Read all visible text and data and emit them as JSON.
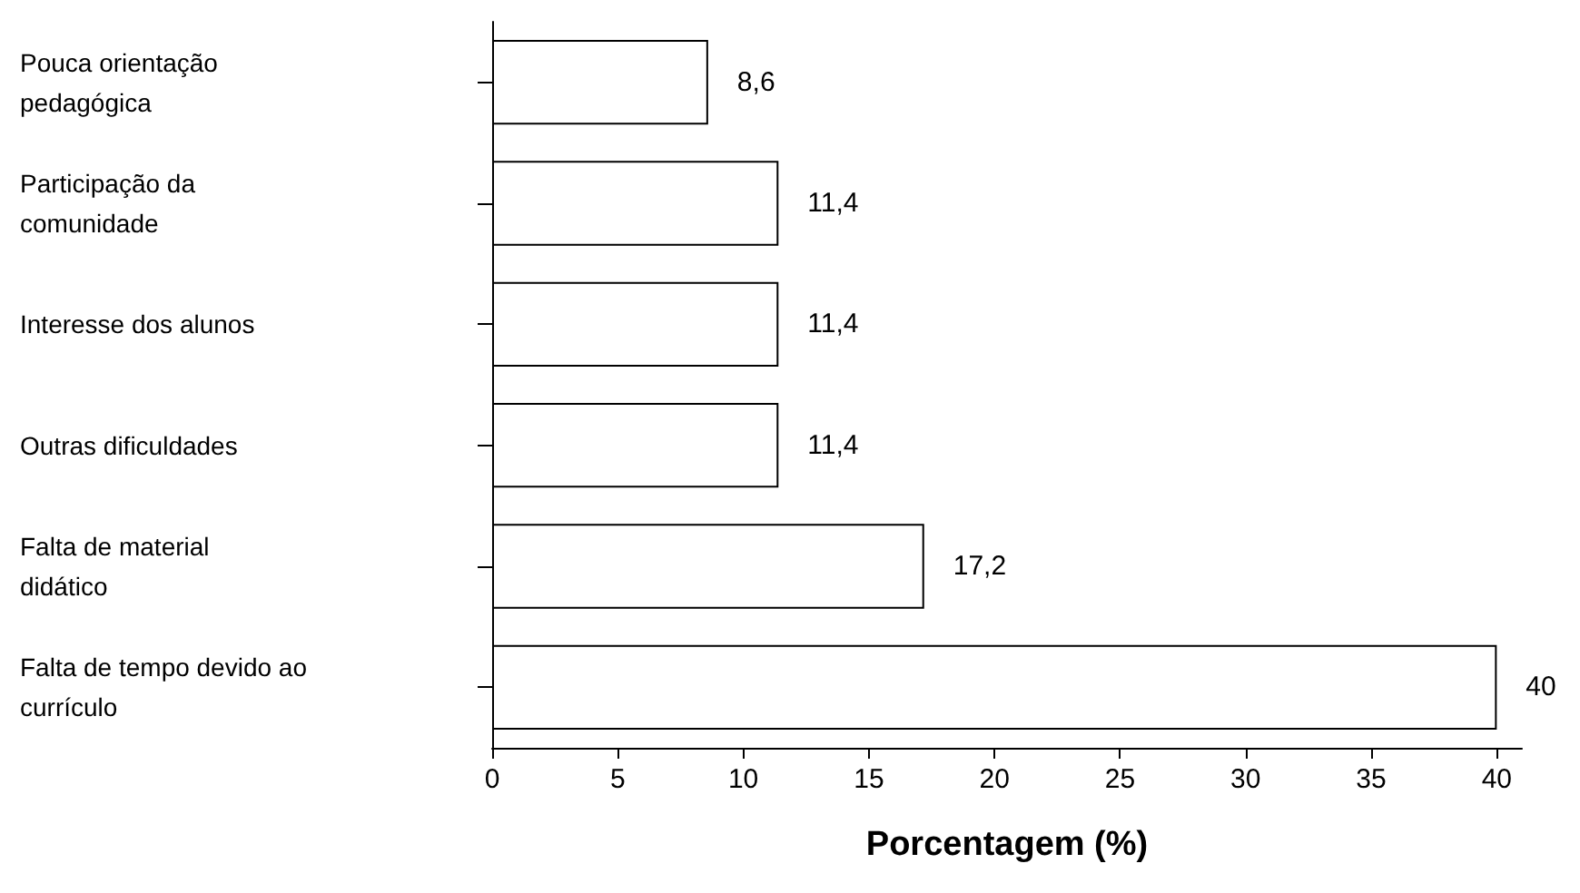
{
  "chart_data": {
    "type": "bar",
    "orientation": "horizontal",
    "xlabel": "Porcentagem (%)",
    "categories": [
      "Pouca orientação pedagógica",
      "Participação da comunidade",
      "Interesse dos alunos",
      "Outras dificuldades",
      "Falta de material didático",
      "Falta de tempo devido ao currículo"
    ],
    "values": [
      8.6,
      11.4,
      11.4,
      11.4,
      17.2,
      40
    ],
    "value_labels": [
      "8,6",
      "11,4",
      "11,4",
      "11,4",
      "17,2",
      "40"
    ],
    "color": "#ffffff",
    "xlim": [
      0,
      41
    ],
    "xticks": [
      0,
      5,
      10,
      15,
      20,
      25,
      30,
      35,
      40
    ]
  }
}
